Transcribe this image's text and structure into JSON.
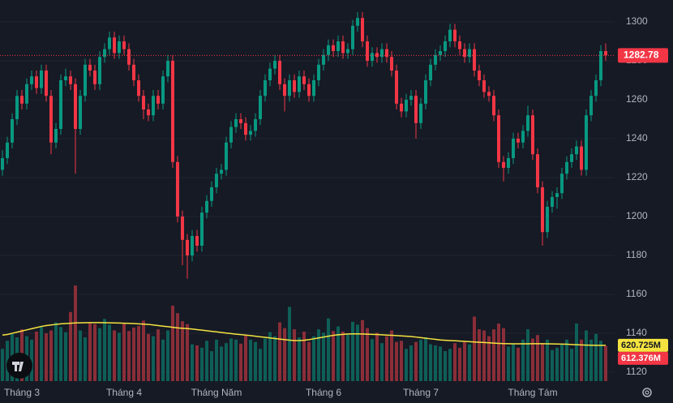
{
  "chart_data": {
    "type": "candlestick",
    "categories": [
      null,
      null,
      null,
      null,
      "Tháng 3",
      null,
      null,
      null,
      null,
      null,
      null,
      null,
      null,
      null,
      null,
      null,
      null,
      null,
      null,
      null,
      null,
      null,
      null,
      null,
      null,
      "Tháng 4",
      null,
      null,
      null,
      null,
      null,
      null,
      null,
      null,
      null,
      null,
      null,
      null,
      null,
      null,
      null,
      null,
      null,
      null,
      "Tháng Năm",
      null,
      null,
      null,
      null,
      null,
      null,
      null,
      null,
      null,
      null,
      null,
      null,
      null,
      null,
      null,
      null,
      null,
      null,
      null,
      null,
      null,
      "Tháng 6",
      null,
      null,
      null,
      null,
      null,
      null,
      null,
      null,
      null,
      null,
      null,
      null,
      null,
      null,
      null,
      null,
      null,
      null,
      null,
      "Tháng 7",
      null,
      null,
      null,
      null,
      null,
      null,
      null,
      null,
      null,
      null,
      null,
      null,
      null,
      null,
      null,
      null,
      null,
      null,
      null,
      null,
      null,
      null,
      "Tháng Tám",
      null,
      null,
      null,
      null,
      null,
      null,
      null,
      null,
      null,
      null,
      null,
      null,
      null,
      null,
      null
    ],
    "ohlc": [
      [
        1224,
        1234,
        1221,
        1230
      ],
      [
        1230,
        1241,
        1227,
        1238
      ],
      [
        1238,
        1253,
        1235,
        1250
      ],
      [
        1250,
        1265,
        1247,
        1262
      ],
      [
        1262,
        1265,
        1255,
        1258
      ],
      [
        1258,
        1271,
        1255,
        1268
      ],
      [
        1268,
        1275,
        1265,
        1272
      ],
      [
        1272,
        1275,
        1263,
        1266
      ],
      [
        1266,
        1278,
        1263,
        1275
      ],
      [
        1275,
        1278,
        1259,
        1262
      ],
      [
        1262,
        1265,
        1232,
        1238
      ],
      [
        1238,
        1248,
        1235,
        1245
      ],
      [
        1245,
        1273,
        1242,
        1270
      ],
      [
        1270,
        1276,
        1267,
        1272
      ],
      [
        1272,
        1275,
        1265,
        1268
      ],
      [
        1268,
        1271,
        1222,
        1245
      ],
      [
        1245,
        1265,
        1242,
        1262
      ],
      [
        1262,
        1281,
        1259,
        1278
      ],
      [
        1278,
        1281,
        1272,
        1275
      ],
      [
        1275,
        1278,
        1265,
        1268
      ],
      [
        1268,
        1285,
        1265,
        1282
      ],
      [
        1282,
        1289,
        1279,
        1286
      ],
      [
        1286,
        1295,
        1283,
        1292
      ],
      [
        1292,
        1295,
        1281,
        1284
      ],
      [
        1284,
        1293,
        1281,
        1290
      ],
      [
        1290,
        1293,
        1283,
        1286
      ],
      [
        1286,
        1289,
        1275,
        1278
      ],
      [
        1278,
        1281,
        1267,
        1270
      ],
      [
        1270,
        1273,
        1259,
        1262
      ],
      [
        1262,
        1265,
        1250,
        1255
      ],
      [
        1255,
        1258,
        1249,
        1252
      ],
      [
        1252,
        1265,
        1249,
        1262
      ],
      [
        1262,
        1265,
        1255,
        1258
      ],
      [
        1258,
        1275,
        1255,
        1272
      ],
      [
        1272,
        1283,
        1269,
        1280
      ],
      [
        1280,
        1283,
        1225,
        1228
      ],
      [
        1228,
        1231,
        1197,
        1200
      ],
      [
        1200,
        1203,
        1175,
        1188
      ],
      [
        1188,
        1191,
        1168,
        1180
      ],
      [
        1180,
        1193,
        1177,
        1190
      ],
      [
        1190,
        1193,
        1182,
        1185
      ],
      [
        1185,
        1205,
        1182,
        1202
      ],
      [
        1202,
        1211,
        1199,
        1208
      ],
      [
        1208,
        1218,
        1205,
        1215
      ],
      [
        1215,
        1225,
        1212,
        1222
      ],
      [
        1222,
        1227,
        1219,
        1224
      ],
      [
        1224,
        1241,
        1221,
        1238
      ],
      [
        1238,
        1249,
        1235,
        1246
      ],
      [
        1246,
        1253,
        1243,
        1250
      ],
      [
        1250,
        1253,
        1245,
        1248
      ],
      [
        1248,
        1251,
        1239,
        1242
      ],
      [
        1242,
        1247,
        1239,
        1244
      ],
      [
        1244,
        1253,
        1241,
        1250
      ],
      [
        1250,
        1265,
        1247,
        1262
      ],
      [
        1262,
        1273,
        1259,
        1270
      ],
      [
        1270,
        1279,
        1267,
        1276
      ],
      [
        1276,
        1283,
        1273,
        1280
      ],
      [
        1280,
        1283,
        1265,
        1268
      ],
      [
        1268,
        1271,
        1254,
        1262
      ],
      [
        1262,
        1273,
        1259,
        1270
      ],
      [
        1270,
        1273,
        1261,
        1264
      ],
      [
        1264,
        1275,
        1261,
        1272
      ],
      [
        1272,
        1275,
        1265,
        1268
      ],
      [
        1268,
        1271,
        1259,
        1262
      ],
      [
        1262,
        1273,
        1259,
        1270
      ],
      [
        1270,
        1281,
        1267,
        1278
      ],
      [
        1278,
        1286,
        1275,
        1283
      ],
      [
        1283,
        1291,
        1280,
        1288
      ],
      [
        1288,
        1291,
        1282,
        1285
      ],
      [
        1285,
        1293,
        1282,
        1290
      ],
      [
        1290,
        1293,
        1281,
        1284
      ],
      [
        1284,
        1289,
        1281,
        1286
      ],
      [
        1286,
        1301,
        1283,
        1298
      ],
      [
        1298,
        1305,
        1295,
        1302
      ],
      [
        1302,
        1305,
        1287,
        1290
      ],
      [
        1290,
        1293,
        1277,
        1280
      ],
      [
        1280,
        1287,
        1277,
        1284
      ],
      [
        1284,
        1287,
        1279,
        1282
      ],
      [
        1282,
        1289,
        1279,
        1286
      ],
      [
        1286,
        1289,
        1279,
        1282
      ],
      [
        1282,
        1285,
        1272,
        1275
      ],
      [
        1275,
        1278,
        1255,
        1258
      ],
      [
        1258,
        1261,
        1251,
        1254
      ],
      [
        1254,
        1263,
        1251,
        1260
      ],
      [
        1260,
        1265,
        1257,
        1262
      ],
      [
        1262,
        1265,
        1240,
        1248
      ],
      [
        1248,
        1261,
        1245,
        1258
      ],
      [
        1258,
        1273,
        1255,
        1270
      ],
      [
        1270,
        1281,
        1267,
        1278
      ],
      [
        1278,
        1286,
        1275,
        1283
      ],
      [
        1283,
        1288,
        1280,
        1285
      ],
      [
        1285,
        1293,
        1282,
        1290
      ],
      [
        1290,
        1299,
        1287,
        1296
      ],
      [
        1296,
        1299,
        1287,
        1290
      ],
      [
        1290,
        1293,
        1283,
        1286
      ],
      [
        1286,
        1289,
        1279,
        1282
      ],
      [
        1282,
        1289,
        1279,
        1286
      ],
      [
        1286,
        1289,
        1272,
        1275
      ],
      [
        1275,
        1278,
        1267,
        1270
      ],
      [
        1270,
        1273,
        1261,
        1264
      ],
      [
        1264,
        1267,
        1259,
        1262
      ],
      [
        1262,
        1265,
        1249,
        1252
      ],
      [
        1252,
        1255,
        1225,
        1228
      ],
      [
        1228,
        1231,
        1218,
        1225
      ],
      [
        1225,
        1233,
        1222,
        1230
      ],
      [
        1230,
        1243,
        1227,
        1240
      ],
      [
        1240,
        1243,
        1235,
        1238
      ],
      [
        1238,
        1247,
        1235,
        1244
      ],
      [
        1244,
        1257,
        1241,
        1252
      ],
      [
        1252,
        1255,
        1229,
        1232
      ],
      [
        1232,
        1235,
        1212,
        1215
      ],
      [
        1215,
        1218,
        1185,
        1192
      ],
      [
        1192,
        1208,
        1189,
        1205
      ],
      [
        1205,
        1213,
        1202,
        1210
      ],
      [
        1210,
        1215,
        1204,
        1212
      ],
      [
        1212,
        1225,
        1209,
        1222
      ],
      [
        1222,
        1231,
        1219,
        1228
      ],
      [
        1228,
        1235,
        1225,
        1232
      ],
      [
        1232,
        1239,
        1229,
        1236
      ],
      [
        1236,
        1239,
        1221,
        1224
      ],
      [
        1224,
        1255,
        1221,
        1252
      ],
      [
        1252,
        1265,
        1249,
        1262
      ],
      [
        1262,
        1273,
        1259,
        1270
      ],
      [
        1270,
        1288,
        1267,
        1285
      ],
      [
        1285,
        1289,
        1280,
        1282.78
      ]
    ],
    "up_color": "#089981",
    "down_color": "#f23645",
    "ylim": [
      1115.42,
      1311.25
    ],
    "yticks": [
      1120,
      1140,
      1160,
      1180,
      1200,
      1220,
      1240,
      1260,
      1280,
      1300
    ],
    "volume": {
      "values": [
        560,
        700,
        820,
        760,
        900,
        780,
        720,
        860,
        950,
        830,
        880,
        1020,
        940,
        850,
        1200,
        1660,
        880,
        760,
        1010,
        990,
        920,
        1080,
        980,
        880,
        840,
        1010,
        870,
        930,
        960,
        1050,
        820,
        780,
        900,
        720,
        880,
        1310,
        1180,
        1040,
        990,
        640,
        620,
        580,
        700,
        520,
        720,
        600,
        660,
        740,
        720,
        650,
        800,
        720,
        680,
        560,
        740,
        850,
        780,
        1020,
        920,
        1290,
        900,
        760,
        860,
        680,
        780,
        900,
        840,
        1090,
        870,
        950,
        860,
        820,
        1030,
        980,
        1060,
        920,
        730,
        840,
        660,
        780,
        880,
        680,
        700,
        560,
        620,
        680,
        720,
        760,
        640,
        620,
        600,
        520,
        560,
        660,
        580,
        680,
        640,
        1120,
        900,
        880,
        780,
        900,
        1000,
        920,
        600,
        640,
        580,
        720,
        900,
        740,
        800,
        660,
        720,
        540,
        580,
        640,
        720,
        560,
        1000,
        720,
        880,
        720,
        820,
        700,
        612.376
      ],
      "last_value_label": "612.376M",
      "up_color": "#0e5f57",
      "down_color": "#8a2e38",
      "vlim": [
        0,
        2000
      ]
    },
    "volume_ma": {
      "values": [
        800,
        810,
        830,
        850,
        870,
        890,
        910,
        930,
        950,
        965,
        975,
        985,
        995,
        1000,
        1005,
        1010,
        1012,
        1014,
        1015,
        1015,
        1015,
        1014,
        1012,
        1010,
        1008,
        1006,
        1004,
        1000,
        995,
        990,
        985,
        975,
        965,
        955,
        945,
        935,
        925,
        918,
        912,
        905,
        895,
        885,
        875,
        865,
        855,
        845,
        835,
        825,
        815,
        808,
        800,
        790,
        780,
        770,
        760,
        750,
        740,
        730,
        720,
        712,
        705,
        705,
        710,
        720,
        735,
        750,
        765,
        780,
        795,
        805,
        812,
        818,
        820,
        820,
        818,
        815,
        812,
        810,
        805,
        800,
        795,
        790,
        785,
        780,
        775,
        765,
        755,
        745,
        735,
        725,
        715,
        710,
        705,
        700,
        695,
        690,
        685,
        680,
        675,
        670,
        665,
        660,
        655,
        652,
        650,
        648,
        648,
        648,
        648,
        650,
        650,
        650,
        648,
        646,
        644,
        642,
        640,
        636,
        632,
        628,
        625,
        623,
        622,
        621,
        620.725
      ],
      "last_value_label": "620.725M",
      "color": "#f5e33f"
    }
  }
}
